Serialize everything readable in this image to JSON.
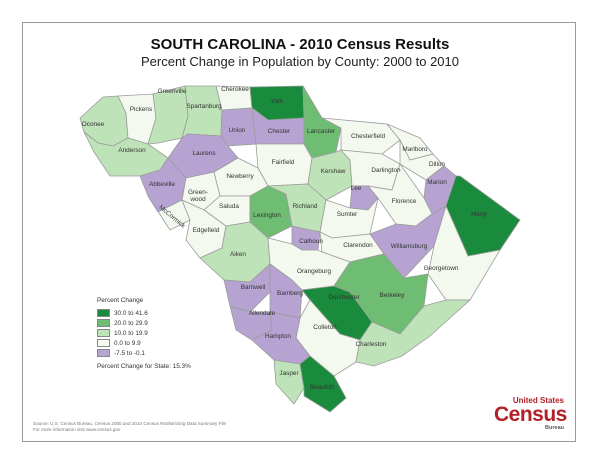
{
  "title": "SOUTH CAROLINA - 2010 Census Results",
  "subtitle": "Percent Change in Population by County:  2000 to 2010",
  "colors": {
    "c30": "#1a8a3c",
    "c20": "#6ebd72",
    "c10": "#bfe3b8",
    "c0": "#f4f9ef",
    "cneg": "#b6a3d2",
    "border": "#9c9c9c"
  },
  "legend": {
    "title": "Percent Change",
    "items": [
      {
        "label": "30.0 to 41.6",
        "cls": "c30"
      },
      {
        "label": "20.0 to 29.9",
        "cls": "c20"
      },
      {
        "label": "10.0 to 19.9",
        "cls": "c10"
      },
      {
        "label": "0.0 to 9.9",
        "cls": "c0"
      },
      {
        "label": "-7.5 to -0.1",
        "cls": "cneg"
      }
    ],
    "state_label": "Percent Change for State:  15.3%"
  },
  "counties": [
    {
      "name": "Oconee",
      "cls": "c10"
    },
    {
      "name": "Pickens",
      "cls": "c0"
    },
    {
      "name": "Greenville",
      "cls": "c10"
    },
    {
      "name": "Spartanburg",
      "cls": "c10"
    },
    {
      "name": "Cherokee",
      "cls": "c0"
    },
    {
      "name": "York",
      "cls": "c30"
    },
    {
      "name": "Union",
      "cls": "cneg"
    },
    {
      "name": "Chester",
      "cls": "cneg"
    },
    {
      "name": "Lancaster",
      "cls": "c20"
    },
    {
      "name": "Chesterfield",
      "cls": "c0"
    },
    {
      "name": "Marlboro",
      "cls": "c0"
    },
    {
      "name": "Anderson",
      "cls": "c10"
    },
    {
      "name": "Laurens",
      "cls": "cneg"
    },
    {
      "name": "Fairfield",
      "cls": "c0"
    },
    {
      "name": "Kershaw",
      "cls": "c10"
    },
    {
      "name": "Darlington",
      "cls": "c0"
    },
    {
      "name": "Dillon",
      "cls": "c0"
    },
    {
      "name": "Lee",
      "cls": "cneg"
    },
    {
      "name": "Marion",
      "cls": "cneg"
    },
    {
      "name": "Horry",
      "cls": "c30"
    },
    {
      "name": "Abbeville",
      "cls": "cneg"
    },
    {
      "name": "Green- wood",
      "cls": "c0"
    },
    {
      "name": "Newberry",
      "cls": "c0"
    },
    {
      "name": "McCormick",
      "cls": "c0"
    },
    {
      "name": "Saluda",
      "cls": "c0"
    },
    {
      "name": "Edgefield",
      "cls": "c0"
    },
    {
      "name": "Lexington",
      "cls": "c20"
    },
    {
      "name": "Richland",
      "cls": "c10"
    },
    {
      "name": "Sumter",
      "cls": "c0"
    },
    {
      "name": "Florence",
      "cls": "c0"
    },
    {
      "name": "Calhoun",
      "cls": "cneg"
    },
    {
      "name": "Clarendon",
      "cls": "c0"
    },
    {
      "name": "Williamsburg",
      "cls": "cneg"
    },
    {
      "name": "Aiken",
      "cls": "c10"
    },
    {
      "name": "Orangeburg",
      "cls": "c0"
    },
    {
      "name": "Georgetown",
      "cls": "c0"
    },
    {
      "name": "Barnwell",
      "cls": "cneg"
    },
    {
      "name": "Bamberg",
      "cls": "cneg"
    },
    {
      "name": "Dorchester",
      "cls": "c30"
    },
    {
      "name": "Berkeley",
      "cls": "c20"
    },
    {
      "name": "Allendale",
      "cls": "cneg"
    },
    {
      "name": "Colleton",
      "cls": "c0"
    },
    {
      "name": "Hampton",
      "cls": "cneg"
    },
    {
      "name": "Charleston",
      "cls": "c10"
    },
    {
      "name": "Jasper",
      "cls": "c10"
    },
    {
      "name": "Beaufort",
      "cls": "c30"
    }
  ],
  "source": {
    "line1": "Source:  U.S. Census Bureau, Census 2000 and 2010 Census Redistricting Data Summary File",
    "line2": "For more information visit www.census.gov"
  },
  "logo": {
    "line1": "United States",
    "line2": "Census",
    "line3": "Bureau"
  }
}
